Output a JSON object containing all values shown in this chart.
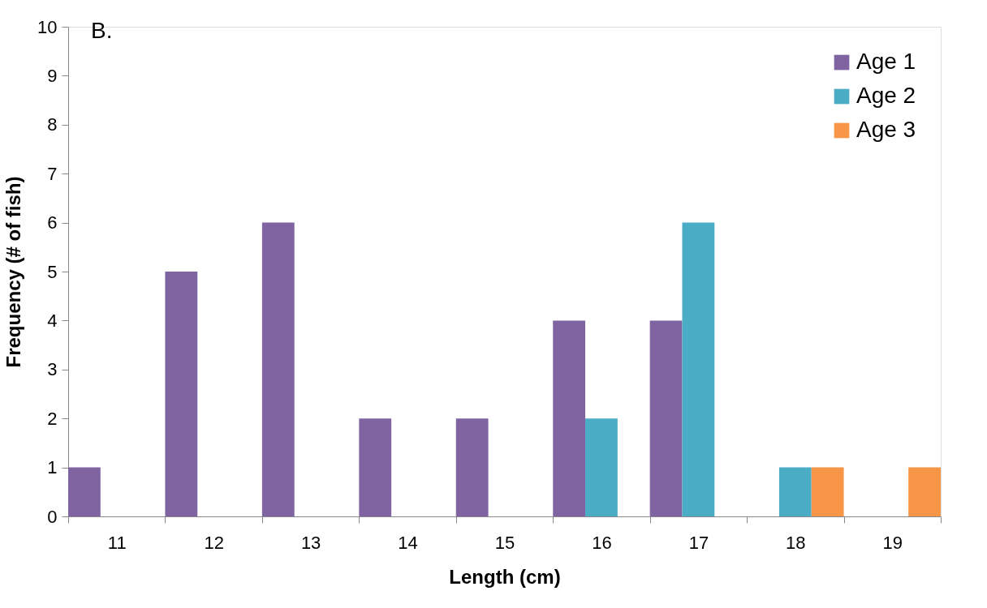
{
  "chart_data": {
    "type": "bar",
    "xlabel": "Length (cm)",
    "ylabel": "Frequency (# of fish)",
    "annotations": [
      "B."
    ],
    "categories": [
      "11",
      "12",
      "13",
      "14",
      "15",
      "16",
      "17",
      "18",
      "19"
    ],
    "series": [
      {
        "name": "Age 1",
        "color": "#8064a2",
        "values": [
          1,
          5,
          6,
          2,
          2,
          4,
          4,
          0,
          0
        ]
      },
      {
        "name": "Age 2",
        "color": "#4bacc6",
        "values": [
          0,
          0,
          0,
          0,
          0,
          2,
          6,
          1,
          0
        ]
      },
      {
        "name": "Age 3",
        "color": "#f79646",
        "values": [
          0,
          0,
          0,
          0,
          0,
          0,
          0,
          1,
          1
        ]
      }
    ],
    "ylim": [
      0,
      10
    ],
    "yticks": [
      0,
      1,
      2,
      3,
      4,
      5,
      6,
      7,
      8,
      9,
      10
    ],
    "grid": false,
    "legend": "top right"
  }
}
